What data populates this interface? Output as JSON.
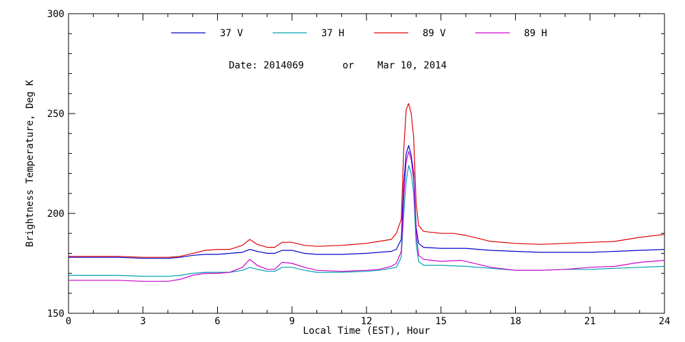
{
  "chart_data": {
    "type": "line",
    "title": "",
    "date_line": {
      "prefix": "Date: 2014069",
      "separator": "or",
      "date": "Mar 10, 2014"
    },
    "xlabel": "Local Time (EST), Hour",
    "ylabel": "Brightness Temperature, Deg K",
    "xlim": [
      0,
      24
    ],
    "ylim": [
      150,
      300
    ],
    "xticks": [
      0,
      3,
      6,
      9,
      12,
      15,
      18,
      21,
      24
    ],
    "yticks": [
      150,
      200,
      250,
      300
    ],
    "grid": false,
    "legend_placement": "top",
    "series": [
      {
        "name": "37 V",
        "color": "#0000cc",
        "points": [
          [
            0,
            178
          ],
          [
            1,
            178
          ],
          [
            2,
            178
          ],
          [
            3,
            177.5
          ],
          [
            4,
            177.5
          ],
          [
            4.5,
            178
          ],
          [
            5,
            179
          ],
          [
            5.5,
            179.5
          ],
          [
            6,
            179.5
          ],
          [
            6.5,
            180
          ],
          [
            7,
            180.5
          ],
          [
            7.3,
            182
          ],
          [
            7.6,
            181
          ],
          [
            8,
            180
          ],
          [
            8.3,
            180
          ],
          [
            8.6,
            181.5
          ],
          [
            9,
            181.5
          ],
          [
            9.5,
            180
          ],
          [
            10,
            179.5
          ],
          [
            11,
            179.5
          ],
          [
            12,
            180
          ],
          [
            12.5,
            180.5
          ],
          [
            13,
            181
          ],
          [
            13.2,
            182
          ],
          [
            13.4,
            187
          ],
          [
            13.5,
            215
          ],
          [
            13.6,
            230
          ],
          [
            13.7,
            234
          ],
          [
            13.8,
            229
          ],
          [
            13.9,
            220
          ],
          [
            14,
            193
          ],
          [
            14.1,
            185
          ],
          [
            14.3,
            183
          ],
          [
            15,
            182.5
          ],
          [
            16,
            182.5
          ],
          [
            17,
            181.5
          ],
          [
            18,
            181
          ],
          [
            19,
            180.5
          ],
          [
            20,
            180.5
          ],
          [
            21,
            180.5
          ],
          [
            22,
            181
          ],
          [
            23,
            181.5
          ],
          [
            24,
            182
          ]
        ]
      },
      {
        "name": "37 H",
        "color": "#00a0b0",
        "points": [
          [
            0,
            169
          ],
          [
            1,
            169
          ],
          [
            2,
            169
          ],
          [
            3,
            168.5
          ],
          [
            4,
            168.5
          ],
          [
            4.5,
            169
          ],
          [
            5,
            170
          ],
          [
            5.5,
            170.5
          ],
          [
            6,
            170.5
          ],
          [
            6.5,
            170.5
          ],
          [
            7,
            171.5
          ],
          [
            7.3,
            173
          ],
          [
            7.6,
            172
          ],
          [
            8,
            171
          ],
          [
            8.3,
            171
          ],
          [
            8.6,
            173
          ],
          [
            9,
            173
          ],
          [
            9.5,
            171.5
          ],
          [
            10,
            170.5
          ],
          [
            11,
            170.5
          ],
          [
            12,
            171
          ],
          [
            12.5,
            171.5
          ],
          [
            13,
            172.5
          ],
          [
            13.2,
            173
          ],
          [
            13.4,
            178
          ],
          [
            13.5,
            200
          ],
          [
            13.6,
            216
          ],
          [
            13.7,
            224
          ],
          [
            13.8,
            220
          ],
          [
            13.9,
            210
          ],
          [
            14,
            185
          ],
          [
            14.1,
            176
          ],
          [
            14.3,
            174
          ],
          [
            15,
            174
          ],
          [
            16,
            173.5
          ],
          [
            17,
            172.5
          ],
          [
            18,
            171.5
          ],
          [
            19,
            171.5
          ],
          [
            20,
            172
          ],
          [
            21,
            172
          ],
          [
            22,
            172.5
          ],
          [
            23,
            173
          ],
          [
            24,
            173.5
          ]
        ]
      },
      {
        "name": "89 V",
        "color": "#dd0000",
        "points": [
          [
            0,
            178.5
          ],
          [
            1,
            178.5
          ],
          [
            2,
            178.5
          ],
          [
            3,
            178
          ],
          [
            4,
            178
          ],
          [
            4.5,
            178.5
          ],
          [
            5,
            180
          ],
          [
            5.5,
            181.5
          ],
          [
            6,
            182
          ],
          [
            6.5,
            182
          ],
          [
            7,
            184
          ],
          [
            7.3,
            187
          ],
          [
            7.6,
            184.5
          ],
          [
            8,
            183
          ],
          [
            8.3,
            183
          ],
          [
            8.6,
            185.5
          ],
          [
            9,
            185.5
          ],
          [
            9.5,
            184
          ],
          [
            10,
            183.5
          ],
          [
            11,
            184
          ],
          [
            12,
            185
          ],
          [
            12.5,
            186
          ],
          [
            13,
            187
          ],
          [
            13.2,
            190
          ],
          [
            13.4,
            197
          ],
          [
            13.5,
            232
          ],
          [
            13.6,
            252
          ],
          [
            13.7,
            255
          ],
          [
            13.8,
            250
          ],
          [
            13.9,
            238
          ],
          [
            14,
            205
          ],
          [
            14.1,
            194
          ],
          [
            14.3,
            191
          ],
          [
            15,
            190
          ],
          [
            15.5,
            190
          ],
          [
            16,
            189
          ],
          [
            17,
            186
          ],
          [
            18,
            185
          ],
          [
            19,
            184.5
          ],
          [
            20,
            185
          ],
          [
            21,
            185.5
          ],
          [
            22,
            186
          ],
          [
            23,
            188
          ],
          [
            24,
            189.5
          ]
        ]
      },
      {
        "name": "89 H",
        "color": "#cc00cc",
        "points": [
          [
            0,
            166.5
          ],
          [
            1,
            166.5
          ],
          [
            2,
            166.5
          ],
          [
            3,
            166
          ],
          [
            4,
            166
          ],
          [
            4.5,
            167
          ],
          [
            5,
            169
          ],
          [
            5.5,
            170
          ],
          [
            6,
            170
          ],
          [
            6.5,
            170.5
          ],
          [
            7,
            173
          ],
          [
            7.3,
            177
          ],
          [
            7.6,
            174
          ],
          [
            8,
            172
          ],
          [
            8.3,
            172
          ],
          [
            8.6,
            175.5
          ],
          [
            9,
            175
          ],
          [
            9.5,
            173
          ],
          [
            10,
            171.5
          ],
          [
            11,
            171
          ],
          [
            12,
            171.5
          ],
          [
            12.5,
            172
          ],
          [
            13,
            173.5
          ],
          [
            13.2,
            175
          ],
          [
            13.4,
            181
          ],
          [
            13.5,
            208
          ],
          [
            13.6,
            226
          ],
          [
            13.7,
            231
          ],
          [
            13.8,
            227
          ],
          [
            13.9,
            217
          ],
          [
            14,
            190
          ],
          [
            14.1,
            179
          ],
          [
            14.3,
            177
          ],
          [
            15,
            176
          ],
          [
            15.8,
            176.5
          ],
          [
            16,
            176
          ],
          [
            17,
            173
          ],
          [
            18,
            171.5
          ],
          [
            19,
            171.5
          ],
          [
            20,
            172
          ],
          [
            21,
            173
          ],
          [
            22,
            173.5
          ],
          [
            23,
            175.5
          ],
          [
            24,
            176.5
          ]
        ]
      }
    ]
  }
}
